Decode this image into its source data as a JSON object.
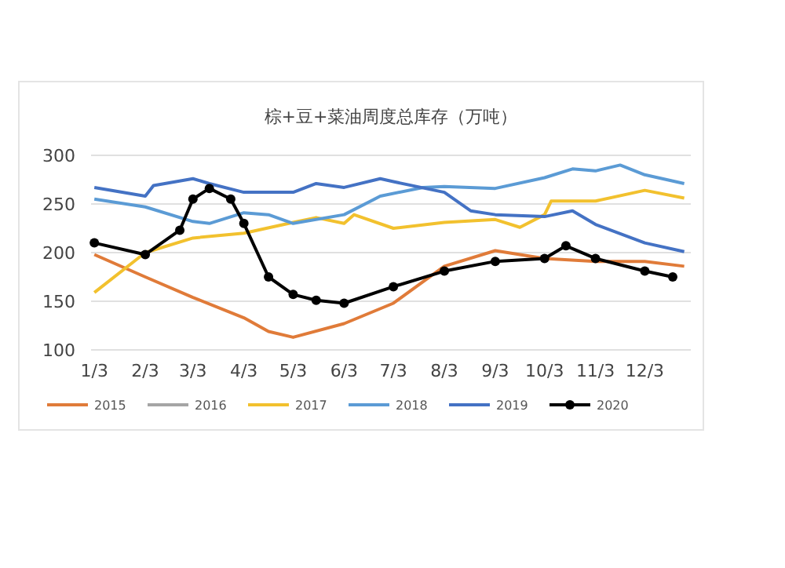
{
  "chart_data": {
    "type": "line",
    "title": "棕+豆+菜油周度总库存（万吨）",
    "xlim": [
      "--01-01",
      "--12-31"
    ],
    "xticks": [
      {
        "value": "--01-03",
        "label": "1/3"
      },
      {
        "value": "--02-03",
        "label": "2/3"
      },
      {
        "value": "--03-03",
        "label": "3/3"
      },
      {
        "value": "--04-03",
        "label": "4/3"
      },
      {
        "value": "--05-03",
        "label": "5/3"
      },
      {
        "value": "--06-03",
        "label": "6/3"
      },
      {
        "value": "--07-03",
        "label": "7/3"
      },
      {
        "value": "--08-03",
        "label": "8/3"
      },
      {
        "value": "--09-03",
        "label": "9/3"
      },
      {
        "value": "--10-03",
        "label": "10/3"
      },
      {
        "value": "--11-03",
        "label": "11/3"
      },
      {
        "value": "--12-03",
        "label": "12/3"
      }
    ],
    "ylim": [
      100,
      300
    ],
    "yticks": [
      100,
      150,
      200,
      250,
      300
    ],
    "grid": "y",
    "legend": "bottom",
    "series": [
      {
        "name": "2015",
        "color": "#e07b39",
        "x": [
          "--01-03",
          "--02-03",
          "--03-03",
          "--04-03",
          "--04-18",
          "--05-03",
          "--06-03",
          "--07-03",
          "--08-03",
          "--09-03",
          "--10-03",
          "--11-03",
          "--12-03",
          "--12-27"
        ],
        "values": [
          198,
          175,
          154,
          133,
          119,
          113,
          127,
          148,
          186,
          202,
          194,
          191,
          191,
          186
        ]
      },
      {
        "name": "2016",
        "color": "#a5a5a5"
      },
      {
        "name": "2017",
        "color": "#f2c12e",
        "x": [
          "--01-03",
          "--02-03",
          "--03-03",
          "--04-03",
          "--05-03",
          "--05-17",
          "--06-03",
          "--06-09",
          "--07-03",
          "--08-03",
          "--09-03",
          "--09-18",
          "--10-03",
          "--10-07",
          "--11-03",
          "--12-03",
          "--12-27"
        ],
        "values": [
          159,
          200,
          215,
          220,
          231,
          236,
          230,
          239,
          225,
          231,
          234,
          226,
          239,
          253,
          253,
          264,
          256
        ]
      },
      {
        "name": "2018",
        "color": "#5b9bd5",
        "x": [
          "--01-03",
          "--02-03",
          "--03-03",
          "--03-13",
          "--04-03",
          "--04-18",
          "--05-03",
          "--06-03",
          "--06-25",
          "--07-21",
          "--08-03",
          "--09-03",
          "--10-03",
          "--10-20",
          "--11-03",
          "--11-18",
          "--12-03",
          "--12-27"
        ],
        "values": [
          255,
          247,
          232,
          230,
          241,
          239,
          230,
          239,
          258,
          267,
          268,
          266,
          277,
          286,
          284,
          290,
          280,
          271
        ]
      },
      {
        "name": "2019",
        "color": "#4472c4",
        "x": [
          "--01-03",
          "--02-03",
          "--02-08",
          "--03-03",
          "--03-13",
          "--04-03",
          "--05-03",
          "--05-17",
          "--06-03",
          "--06-25",
          "--07-03",
          "--08-03",
          "--08-19",
          "--09-03",
          "--10-03",
          "--10-20",
          "--11-03",
          "--12-03",
          "--12-27"
        ],
        "values": [
          267,
          258,
          269,
          276,
          271,
          262,
          262,
          271,
          267,
          276,
          273,
          262,
          243,
          239,
          237,
          243,
          229,
          210,
          201
        ]
      },
      {
        "name": "2020",
        "color": "#000000",
        "marker": "circle",
        "x": [
          "--01-03",
          "--02-03",
          "--02-24",
          "--03-03",
          "--03-13",
          "--03-26",
          "--04-03",
          "--04-18",
          "--05-03",
          "--05-17",
          "--06-03",
          "--07-03",
          "--08-03",
          "--09-03",
          "--10-03",
          "--10-16",
          "--11-03",
          "--12-03",
          "--12-20"
        ],
        "values": [
          210,
          198,
          223,
          255,
          266,
          255,
          230,
          175,
          157,
          151,
          148,
          165,
          181,
          191,
          194,
          207,
          194,
          181,
          175
        ]
      }
    ]
  }
}
